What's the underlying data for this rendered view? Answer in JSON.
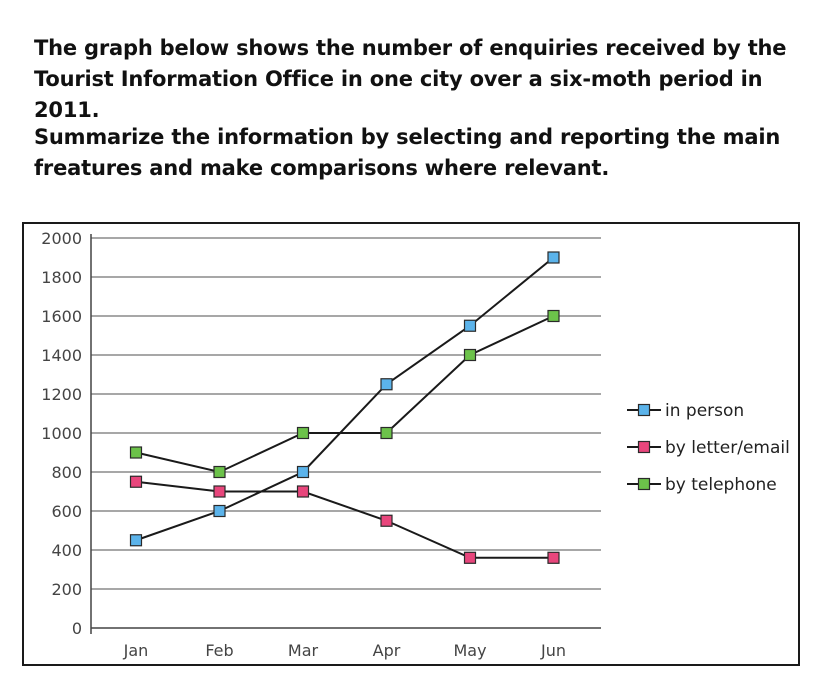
{
  "prompt": "The graph below shows the number of enquiries received by the Tourist Information Office  in one city over a six-moth period in 2011.",
  "instruction": "Summarize the information by selecting and reporting the main freatures and make comparisons where relevant.",
  "chart_data": {
    "type": "line",
    "title": "",
    "xlabel": "",
    "ylabel": "",
    "categories": [
      "Jan",
      "Feb",
      "Mar",
      "Apr",
      "May",
      "Jun"
    ],
    "y_ticks": [
      0,
      200,
      400,
      600,
      800,
      1000,
      1200,
      1400,
      1600,
      1800,
      2000
    ],
    "ylim": [
      0,
      2000
    ],
    "grid": true,
    "legend_position": "right",
    "series": [
      {
        "name": "in person",
        "color": "#5bb3ea",
        "values": [
          450,
          600,
          800,
          1250,
          1550,
          1900
        ]
      },
      {
        "name": "by letter/email",
        "color": "#e8467c",
        "values": [
          750,
          700,
          700,
          550,
          360,
          360
        ]
      },
      {
        "name": "by telephone",
        "color": "#6cc24a",
        "values": [
          900,
          800,
          1000,
          1000,
          1400,
          1600
        ]
      }
    ]
  }
}
